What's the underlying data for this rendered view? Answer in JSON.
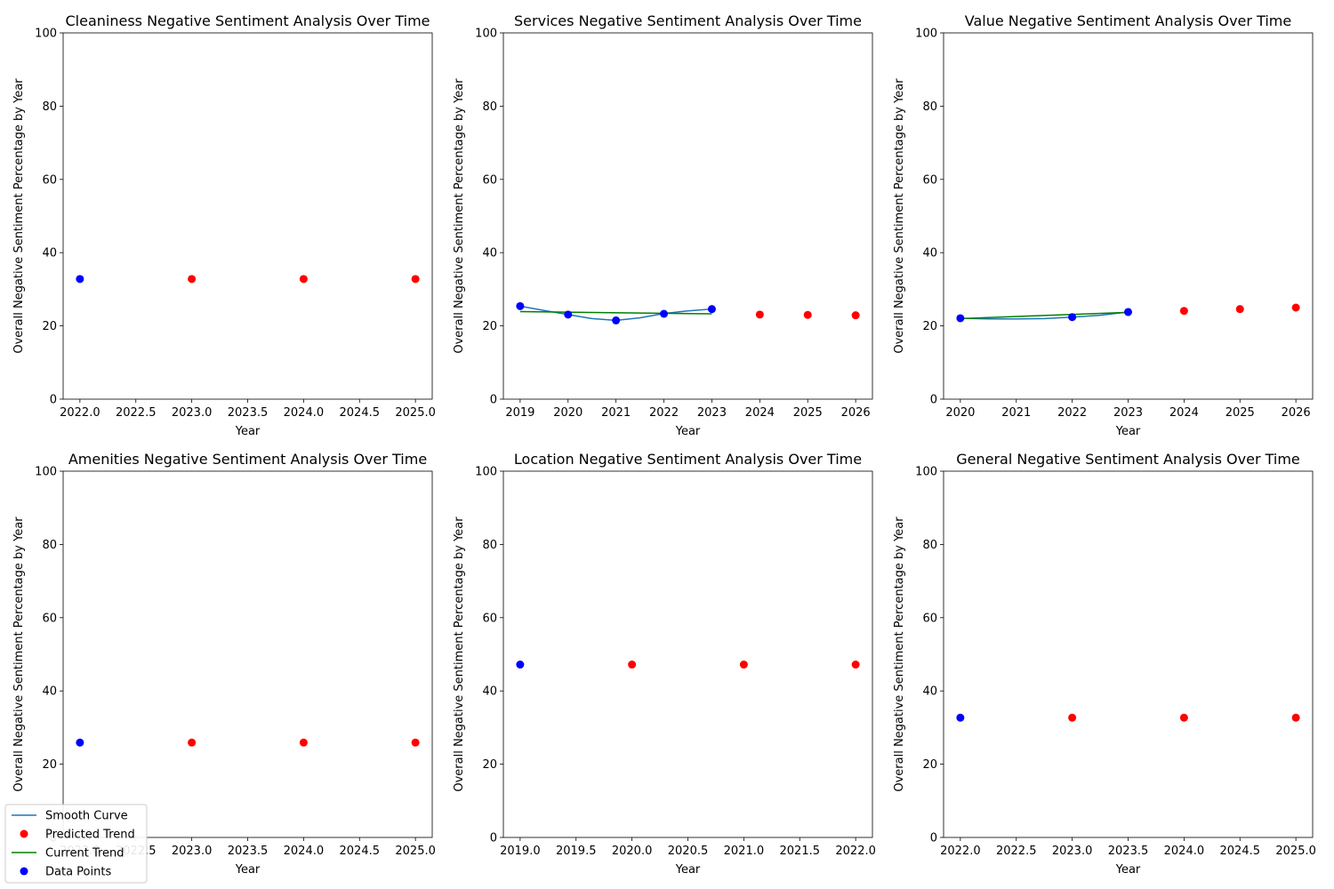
{
  "legend": {
    "items": [
      {
        "label": "Smooth Curve",
        "kind": "line",
        "color": "#1f77b4"
      },
      {
        "label": "Predicted Trend",
        "kind": "dot",
        "color": "#ff0000"
      },
      {
        "label": "Current Trend",
        "kind": "line",
        "color": "#008000"
      },
      {
        "label": "Data Points",
        "kind": "dot",
        "color": "#0000ff"
      }
    ]
  },
  "colors": {
    "data": "#0000ff",
    "predicted": "#ff0000",
    "smooth": "#1f77b4",
    "trend": "#008000"
  },
  "chart_data": [
    {
      "type": "scatter",
      "title": "Cleaniness Negative Sentiment Analysis Over Time",
      "xlabel": "Year",
      "ylabel": "Overall Negative Sentiment Percentage by Year",
      "xlim": [
        2021.85,
        2025.15
      ],
      "ylim": [
        0,
        100
      ],
      "xticks": [
        2022.0,
        2022.5,
        2023.0,
        2023.5,
        2024.0,
        2024.5,
        2025.0
      ],
      "xtick_labels": [
        "2022.0",
        "2022.5",
        "2023.0",
        "2023.5",
        "2024.0",
        "2024.5",
        "2025.0"
      ],
      "yticks": [
        0,
        20,
        40,
        60,
        80,
        100
      ],
      "data_points": [
        {
          "x": 2022,
          "y": 32.8
        }
      ],
      "predicted": [
        {
          "x": 2023,
          "y": 32.8
        },
        {
          "x": 2024,
          "y": 32.8
        },
        {
          "x": 2025,
          "y": 32.8
        }
      ],
      "smooth_curve": [],
      "current_trend": []
    },
    {
      "type": "scatter",
      "title": "Services Negative Sentiment Analysis Over Time",
      "xlabel": "Year",
      "ylabel": "Overall Negative Sentiment Percentage by Year",
      "xlim": [
        2018.65,
        2026.35
      ],
      "ylim": [
        0,
        100
      ],
      "xticks": [
        2019,
        2020,
        2021,
        2022,
        2023,
        2024,
        2025,
        2026
      ],
      "xtick_labels": [
        "2019",
        "2020",
        "2021",
        "2022",
        "2023",
        "2024",
        "2025",
        "2026"
      ],
      "yticks": [
        0,
        20,
        40,
        60,
        80,
        100
      ],
      "data_points": [
        {
          "x": 2019,
          "y": 25.4
        },
        {
          "x": 2020,
          "y": 23.1
        },
        {
          "x": 2021,
          "y": 21.5
        },
        {
          "x": 2022,
          "y": 23.3
        },
        {
          "x": 2023,
          "y": 24.6
        }
      ],
      "predicted": [
        {
          "x": 2024,
          "y": 23.1
        },
        {
          "x": 2025,
          "y": 23.0
        },
        {
          "x": 2026,
          "y": 22.9
        }
      ],
      "smooth_curve": [
        {
          "x": 2019,
          "y": 25.4
        },
        {
          "x": 2019.5,
          "y": 24.2
        },
        {
          "x": 2020,
          "y": 23.1
        },
        {
          "x": 2020.5,
          "y": 22.0
        },
        {
          "x": 2021,
          "y": 21.5
        },
        {
          "x": 2021.5,
          "y": 22.2
        },
        {
          "x": 2022,
          "y": 23.4
        },
        {
          "x": 2022.5,
          "y": 24.1
        },
        {
          "x": 2023,
          "y": 24.6
        }
      ],
      "current_trend": [
        {
          "x": 2019,
          "y": 23.9
        },
        {
          "x": 2023,
          "y": 23.3
        }
      ]
    },
    {
      "type": "scatter",
      "title": "Value Negative Sentiment Analysis Over Time",
      "xlabel": "Year",
      "ylabel": "Overall Negative Sentiment Percentage by Year",
      "xlim": [
        2019.7,
        2026.3
      ],
      "ylim": [
        0,
        100
      ],
      "xticks": [
        2020,
        2021,
        2022,
        2023,
        2024,
        2025,
        2026
      ],
      "xtick_labels": [
        "2020",
        "2021",
        "2022",
        "2023",
        "2024",
        "2025",
        "2026"
      ],
      "yticks": [
        0,
        20,
        40,
        60,
        80,
        100
      ],
      "data_points": [
        {
          "x": 2020,
          "y": 22.1
        },
        {
          "x": 2022,
          "y": 22.4
        },
        {
          "x": 2023,
          "y": 23.8
        }
      ],
      "predicted": [
        {
          "x": 2024,
          "y": 24.1
        },
        {
          "x": 2025,
          "y": 24.6
        },
        {
          "x": 2026,
          "y": 25.0
        }
      ],
      "smooth_curve": [
        {
          "x": 2020,
          "y": 22.1
        },
        {
          "x": 2020.5,
          "y": 21.9
        },
        {
          "x": 2021,
          "y": 21.9
        },
        {
          "x": 2021.5,
          "y": 22.0
        },
        {
          "x": 2022,
          "y": 22.4
        },
        {
          "x": 2022.5,
          "y": 22.9
        },
        {
          "x": 2023,
          "y": 23.8
        }
      ],
      "current_trend": [
        {
          "x": 2020,
          "y": 22.0
        },
        {
          "x": 2023,
          "y": 23.7
        }
      ]
    },
    {
      "type": "scatter",
      "title": "Amenities Negative Sentiment Analysis Over Time",
      "xlabel": "Year",
      "ylabel": "Overall Negative Sentiment Percentage by Year",
      "xlim": [
        2021.85,
        2025.15
      ],
      "ylim": [
        0,
        100
      ],
      "xticks": [
        2022.0,
        2022.5,
        2023.0,
        2023.5,
        2024.0,
        2024.5,
        2025.0
      ],
      "xtick_labels": [
        "2022.0",
        "2022.5",
        "2023.0",
        "2023.5",
        "2024.0",
        "2024.5",
        "2025.0"
      ],
      "yticks": [
        0,
        20,
        40,
        60,
        80,
        100
      ],
      "data_points": [
        {
          "x": 2022,
          "y": 25.9
        }
      ],
      "predicted": [
        {
          "x": 2023,
          "y": 25.9
        },
        {
          "x": 2024,
          "y": 25.9
        },
        {
          "x": 2025,
          "y": 25.9
        }
      ],
      "smooth_curve": [],
      "current_trend": []
    },
    {
      "type": "scatter",
      "title": "Location Negative Sentiment Analysis Over Time",
      "xlabel": "Year",
      "ylabel": "Overall Negative Sentiment Percentage by Year",
      "xlim": [
        2018.85,
        2022.15
      ],
      "ylim": [
        0,
        100
      ],
      "xticks": [
        2019.0,
        2019.5,
        2020.0,
        2020.5,
        2021.0,
        2021.5,
        2022.0
      ],
      "xtick_labels": [
        "2019.0",
        "2019.5",
        "2020.0",
        "2020.5",
        "2021.0",
        "2021.5",
        "2022.0"
      ],
      "yticks": [
        0,
        20,
        40,
        60,
        80,
        100
      ],
      "data_points": [
        {
          "x": 2019,
          "y": 47.2
        }
      ],
      "predicted": [
        {
          "x": 2020,
          "y": 47.2
        },
        {
          "x": 2021,
          "y": 47.2
        },
        {
          "x": 2022,
          "y": 47.2
        }
      ],
      "smooth_curve": [],
      "current_trend": []
    },
    {
      "type": "scatter",
      "title": "General Negative Sentiment Analysis Over Time",
      "xlabel": "Year",
      "ylabel": "Overall Negative Sentiment Percentage by Year",
      "xlim": [
        2021.85,
        2025.15
      ],
      "ylim": [
        0,
        100
      ],
      "xticks": [
        2022.0,
        2022.5,
        2023.0,
        2023.5,
        2024.0,
        2024.5,
        2025.0
      ],
      "xtick_labels": [
        "2022.0",
        "2022.5",
        "2023.0",
        "2023.5",
        "2024.0",
        "2024.5",
        "2025.0"
      ],
      "yticks": [
        0,
        20,
        40,
        60,
        80,
        100
      ],
      "data_points": [
        {
          "x": 2022,
          "y": 32.7
        }
      ],
      "predicted": [
        {
          "x": 2023,
          "y": 32.7
        },
        {
          "x": 2024,
          "y": 32.7
        },
        {
          "x": 2025,
          "y": 32.7
        }
      ],
      "smooth_curve": [],
      "current_trend": []
    }
  ]
}
